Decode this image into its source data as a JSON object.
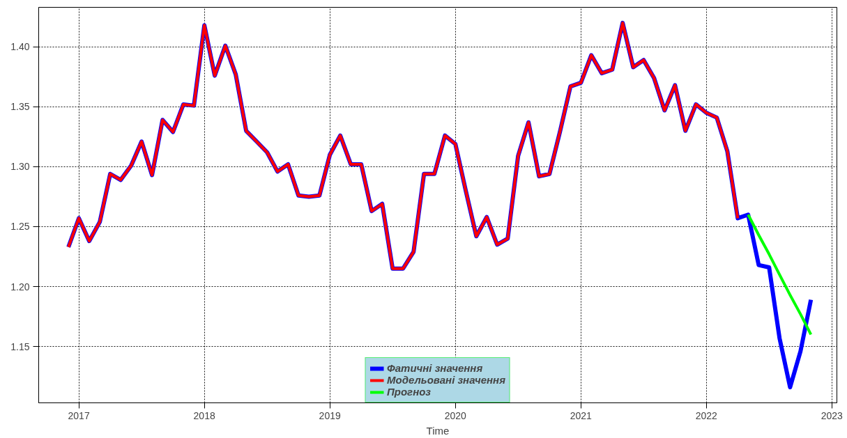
{
  "chart_data": {
    "type": "line",
    "xlabel": "Time",
    "legend": "bottom",
    "grid": true,
    "line_style": "solid",
    "marker": "none",
    "xlim": [
      2016.68,
      2023.04
    ],
    "xticks": [
      2017,
      2018,
      2019,
      2020,
      2021,
      2022,
      2023
    ],
    "ylim": [
      1.103,
      1.433
    ],
    "yticks": [
      {
        "value": 1.15,
        "label": "1.15"
      },
      {
        "value": 1.2,
        "label": "1.20"
      },
      {
        "value": 1.25,
        "label": "1.25"
      },
      {
        "value": 1.3,
        "label": "1.30"
      },
      {
        "value": 1.35,
        "label": "1.35"
      },
      {
        "value": 1.4,
        "label": "1.40"
      }
    ],
    "series": [
      {
        "name": "Фатичні значення",
        "color": "#0000ff",
        "x": [
          2016.917,
          2017.0,
          2017.083,
          2017.167,
          2017.25,
          2017.333,
          2017.417,
          2017.5,
          2017.583,
          2017.667,
          2017.75,
          2017.833,
          2017.917,
          2018.0,
          2018.083,
          2018.167,
          2018.25,
          2018.333,
          2018.417,
          2018.5,
          2018.583,
          2018.667,
          2018.75,
          2018.833,
          2018.917,
          2019.0,
          2019.083,
          2019.167,
          2019.25,
          2019.333,
          2019.417,
          2019.5,
          2019.583,
          2019.667,
          2019.75,
          2019.833,
          2019.917,
          2020.0,
          2020.083,
          2020.167,
          2020.25,
          2020.333,
          2020.417,
          2020.5,
          2020.583,
          2020.667,
          2020.75,
          2020.833,
          2020.917,
          2021.0,
          2021.083,
          2021.167,
          2021.25,
          2021.333,
          2021.417,
          2021.5,
          2021.583,
          2021.667,
          2021.75,
          2021.833,
          2021.917,
          2022.0,
          2022.083,
          2022.167,
          2022.25,
          2022.333,
          2022.417,
          2022.5,
          2022.583,
          2022.667,
          2022.75,
          2022.833
        ],
        "values": [
          1.233,
          1.257,
          1.238,
          1.254,
          1.294,
          1.289,
          1.301,
          1.321,
          1.293,
          1.339,
          1.329,
          1.352,
          1.351,
          1.418,
          1.376,
          1.401,
          1.377,
          1.33,
          1.321,
          1.312,
          1.296,
          1.302,
          1.276,
          1.275,
          1.276,
          1.31,
          1.326,
          1.302,
          1.302,
          1.263,
          1.269,
          1.215,
          1.215,
          1.229,
          1.294,
          1.294,
          1.326,
          1.319,
          1.28,
          1.242,
          1.258,
          1.235,
          1.24,
          1.309,
          1.337,
          1.292,
          1.294,
          1.329,
          1.367,
          1.37,
          1.393,
          1.378,
          1.381,
          1.42,
          1.383,
          1.389,
          1.374,
          1.347,
          1.368,
          1.33,
          1.352,
          1.345,
          1.341,
          1.313,
          1.257,
          1.26,
          1.218,
          1.216,
          1.157,
          1.116,
          1.146,
          1.189
        ]
      },
      {
        "name": "Модельовані значення",
        "color": "#ff0000",
        "x": [
          2016.917,
          2017.0,
          2017.083,
          2017.167,
          2017.25,
          2017.333,
          2017.417,
          2017.5,
          2017.583,
          2017.667,
          2017.75,
          2017.833,
          2017.917,
          2018.0,
          2018.083,
          2018.167,
          2018.25,
          2018.333,
          2018.417,
          2018.5,
          2018.583,
          2018.667,
          2018.75,
          2018.833,
          2018.917,
          2019.0,
          2019.083,
          2019.167,
          2019.25,
          2019.333,
          2019.417,
          2019.5,
          2019.583,
          2019.667,
          2019.75,
          2019.833,
          2019.917,
          2020.0,
          2020.083,
          2020.167,
          2020.25,
          2020.333,
          2020.417,
          2020.5,
          2020.583,
          2020.667,
          2020.75,
          2020.833,
          2020.917,
          2021.0,
          2021.083,
          2021.167,
          2021.25,
          2021.333,
          2021.417,
          2021.5,
          2021.583,
          2021.667,
          2021.75,
          2021.833,
          2021.917,
          2022.0,
          2022.083,
          2022.167,
          2022.25
        ],
        "values": [
          1.233,
          1.257,
          1.238,
          1.254,
          1.294,
          1.289,
          1.301,
          1.321,
          1.293,
          1.339,
          1.329,
          1.352,
          1.351,
          1.418,
          1.376,
          1.401,
          1.377,
          1.33,
          1.321,
          1.312,
          1.296,
          1.302,
          1.276,
          1.275,
          1.276,
          1.31,
          1.326,
          1.302,
          1.302,
          1.263,
          1.269,
          1.215,
          1.215,
          1.229,
          1.294,
          1.294,
          1.326,
          1.319,
          1.28,
          1.242,
          1.258,
          1.235,
          1.24,
          1.309,
          1.337,
          1.292,
          1.294,
          1.329,
          1.367,
          1.37,
          1.393,
          1.378,
          1.381,
          1.42,
          1.383,
          1.389,
          1.374,
          1.347,
          1.368,
          1.33,
          1.352,
          1.345,
          1.341,
          1.313,
          1.257
        ]
      },
      {
        "name": "Прогноз",
        "color": "#00ff00",
        "x": [
          2022.333,
          2022.417,
          2022.5,
          2022.583,
          2022.667,
          2022.75,
          2022.833
        ],
        "values": [
          1.26,
          1.243,
          1.227,
          1.21,
          1.193,
          1.177,
          1.16
        ]
      }
    ]
  }
}
